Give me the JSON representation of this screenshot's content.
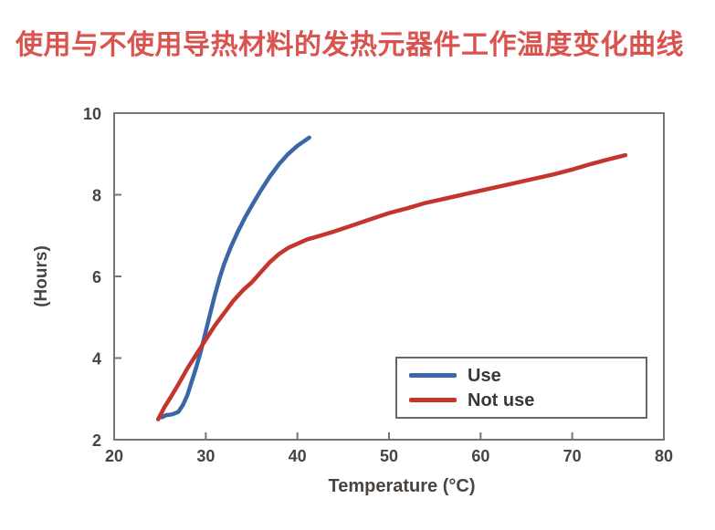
{
  "title": {
    "text": "使用与不使用导热材料的发热元器件工作温度变化曲线",
    "color": "#d9534f"
  },
  "chart_data": {
    "type": "line",
    "title": "使用与不使用导热材料的发热元器件工作温度变化曲线",
    "xlabel": "Temperature (°C)",
    "ylabel": "(Hours)",
    "xlim": [
      20,
      80
    ],
    "ylim": [
      2,
      10
    ],
    "xticks": [
      20,
      30,
      40,
      50,
      60,
      70,
      80
    ],
    "yticks": [
      2,
      4,
      6,
      8,
      10
    ],
    "grid": false,
    "legend_position": "inside lower right, boxed",
    "axis_color": "#7a7472",
    "tick_label_color": "#4a4440",
    "series": [
      {
        "name": "Use",
        "color": "#3b67a6",
        "x": [
          25.2,
          25.7,
          26.3,
          27.0,
          27.5,
          28.0,
          28.5,
          29.0,
          29.5,
          30.0,
          30.5,
          31.0,
          31.5,
          32.0,
          32.7,
          33.5,
          34.3,
          35.2,
          36.0,
          37.0,
          38.0,
          39.0,
          40.0,
          41.3
        ],
        "y": [
          2.55,
          2.6,
          2.62,
          2.68,
          2.85,
          3.1,
          3.45,
          3.8,
          4.2,
          4.65,
          5.1,
          5.55,
          5.95,
          6.3,
          6.7,
          7.1,
          7.45,
          7.8,
          8.1,
          8.45,
          8.75,
          9.0,
          9.2,
          9.4
        ]
      },
      {
        "name": "Not use",
        "color": "#c4352e",
        "x": [
          24.8,
          25.5,
          26.2,
          27.0,
          28.0,
          29.0,
          30.0,
          31.0,
          32.0,
          33.0,
          34.0,
          35.0,
          36.0,
          37.0,
          38.0,
          39.0,
          40.0,
          41.0,
          42.5,
          44.0,
          46.0,
          48.0,
          50.0,
          52.0,
          54.0,
          56.0,
          58.0,
          60.0,
          62.0,
          64.0,
          66.0,
          68.0,
          70.0,
          72.0,
          74.0,
          75.8
        ],
        "y": [
          2.5,
          2.8,
          3.05,
          3.35,
          3.75,
          4.1,
          4.45,
          4.8,
          5.1,
          5.4,
          5.65,
          5.85,
          6.1,
          6.35,
          6.55,
          6.7,
          6.8,
          6.9,
          7.0,
          7.1,
          7.25,
          7.4,
          7.55,
          7.67,
          7.8,
          7.9,
          8.0,
          8.1,
          8.2,
          8.3,
          8.4,
          8.5,
          8.62,
          8.75,
          8.87,
          8.97
        ]
      }
    ]
  }
}
